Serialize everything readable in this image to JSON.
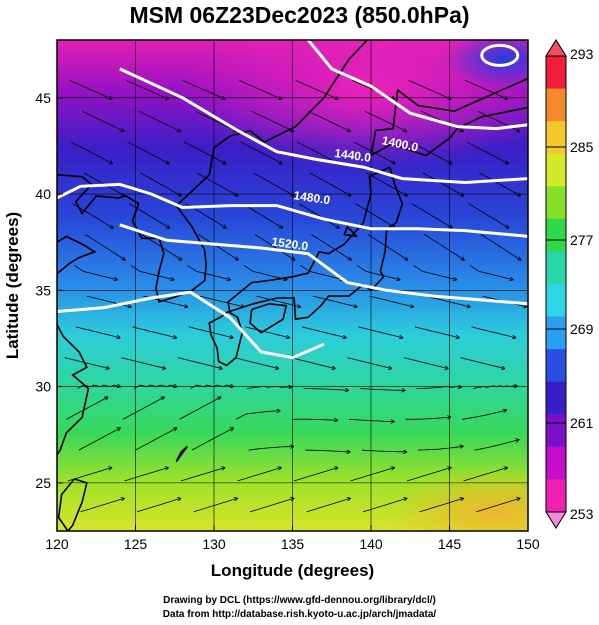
{
  "title": "MSM 06Z23Dec2023 (850.0hPa)",
  "map": {
    "xlabel": "Longitude (degrees)",
    "ylabel": "Latitude  (degrees)",
    "lon_range": [
      120,
      150
    ],
    "lat_range": [
      22.5,
      48
    ],
    "lon_ticks": [
      120,
      125,
      130,
      135,
      140,
      145,
      150
    ],
    "lat_ticks": [
      25,
      30,
      35,
      40,
      45
    ],
    "field": "temperature",
    "overlays": [
      "geopotential height contours",
      "wind streamlines",
      "coastlines",
      "grid"
    ],
    "contours": [
      {
        "label": "1400.0",
        "lon": 141.8,
        "lat": 42.4
      },
      {
        "label": "1440.0",
        "lon": 138.8,
        "lat": 41.8
      },
      {
        "label": "1480.0",
        "lon": 136.2,
        "lat": 39.6
      },
      {
        "label": "1520.0",
        "lon": 134.8,
        "lat": 37.2
      }
    ]
  },
  "colorbar": {
    "min": 253,
    "max": 293,
    "ticks": [
      "293",
      "285",
      "277",
      "269",
      "261",
      "253"
    ],
    "colors": [
      "#f21e3a",
      "#f58a2a",
      "#f2c82c",
      "#d2ea2a",
      "#86e028",
      "#2ed848",
      "#28d6a8",
      "#2cd6e6",
      "#2a9ef0",
      "#2a4ee4",
      "#3a1ec8",
      "#7a10c8",
      "#c40ecc",
      "#f020b0"
    ]
  },
  "credits": {
    "line1": "Drawing by DCL (https://www.gfd-dennou.org/library/dcl/)",
    "line2": "Data from http://database.rish.kyoto-u.ac.jp/arch/jmadata/"
  }
}
